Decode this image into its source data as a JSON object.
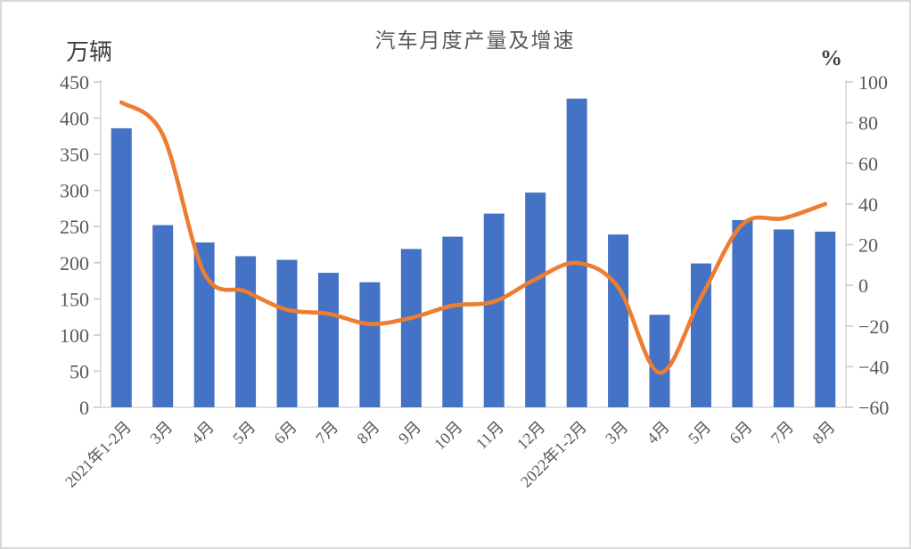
{
  "page": {
    "background_color": "#ffffff",
    "border_color": "#d9d9d9"
  },
  "chart_data": {
    "type": "bar+line",
    "title": "汽车月度产量及增速",
    "grid": "off",
    "legend": "none",
    "categories": [
      "2021年1-2月",
      "3月",
      "4月",
      "5月",
      "6月",
      "7月",
      "8月",
      "9月",
      "10月",
      "11月",
      "12月",
      "2022年1-2月",
      "3月",
      "4月",
      "5月",
      "6月",
      "7月",
      "8月"
    ],
    "series": [
      {
        "name": "月度产量",
        "type": "bar",
        "axis": "left",
        "color": "#4472C4",
        "values": [
          386,
          252,
          228,
          209,
          204,
          186,
          173,
          219,
          236,
          268,
          297,
          427,
          239,
          128,
          199,
          259,
          246,
          243
        ]
      },
      {
        "name": "增速",
        "type": "line",
        "axis": "right",
        "color": "#ED7D31",
        "values": [
          90,
          74,
          6,
          -3,
          -12,
          -14,
          -19,
          -16,
          -10,
          -8,
          3,
          11,
          -1,
          -43,
          -6,
          30,
          33,
          40
        ]
      }
    ],
    "left_axis": {
      "unit": "万辆",
      "min": 0,
      "max": 450,
      "step": 50,
      "tick_labels": [
        "450",
        "400",
        "350",
        "300",
        "250",
        "200",
        "150",
        "100",
        "50",
        "0"
      ]
    },
    "right_axis": {
      "unit": "%",
      "min": -60,
      "max": 100,
      "step": 20,
      "tick_labels": [
        "100",
        "80",
        "60",
        "40",
        "20",
        "0",
        "−20",
        "−40",
        "−60"
      ]
    }
  },
  "styles": {
    "axis_line_color": "#d9d9d9",
    "tick_mark_color": "#c9c9c9",
    "tick_label_color": "#595959",
    "title_color": "#595959",
    "unit_label_color": "#404040"
  }
}
